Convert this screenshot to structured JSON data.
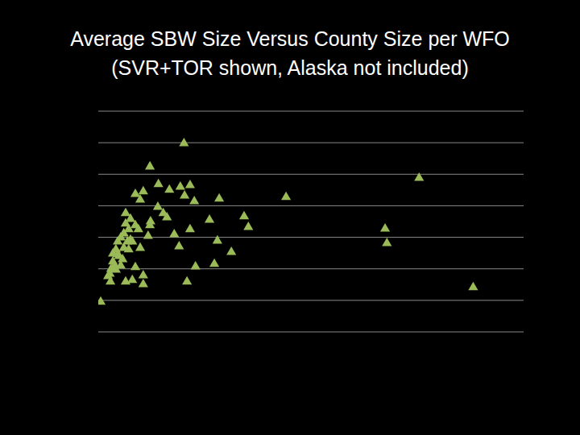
{
  "chart_data": {
    "type": "scatter",
    "title": "Average SBW Size Versus County Size per WFO\n(SVR+TOR shown, Alaska not included)",
    "x": [
      0.04,
      1.41,
      0.85,
      5.28,
      3.09,
      6.17,
      4.72,
      4.75,
      1.51,
      1.35,
      0.99,
      1.17,
      0.61,
      0.74,
      0.69,
      1.42,
      1.58,
      1.99,
      0.98,
      1.07,
      1.13,
      0.86,
      1.83,
      2.4,
      2.47,
      1.51,
      1.25,
      1.96,
      1.33,
      2.19,
      1.6,
      1.91,
      1.46,
      0.74,
      0.74,
      0.56,
      0.45,
      0.61,
      0.82,
      0.85,
      0.69,
      0.66,
      0.53,
      0.61,
      0.5,
      0.45,
      0.42,
      0.48,
      0.37,
      0.32,
      0.29,
      0.34,
      0.24,
      0.21,
      0.19,
      0.16,
      0.2,
      0.27,
      0.4,
      0.42,
      0.5,
      0.32,
      0.37,
      0.53,
      0.45,
      0.56,
      0.24,
      0.29
    ],
    "values": [
      0.95,
      5.98,
      5.24,
      4.88,
      4.27,
      1.41,
      3.27,
      2.81,
      4.65,
      4.6,
      4.68,
      4.5,
      4.37,
      4.45,
      4.19,
      4.32,
      4.14,
      4.22,
      3.96,
      3.76,
      3.63,
      3.5,
      3.55,
      3.66,
      3.32,
      3.25,
      3.09,
      2.89,
      2.71,
      2.53,
      2.07,
      2.15,
      1.59,
      1.79,
      1.51,
      1.64,
      1.59,
      2.05,
      3.04,
      3.38,
      2.66,
      3.25,
      3.58,
      3.38,
      3.25,
      3.43,
      3.12,
      2.86,
      2.99,
      2.86,
      2.61,
      2.4,
      2.23,
      1.99,
      1.84,
      1.76,
      1.59,
      2.1,
      2.3,
      2.66,
      2.61,
      2.46,
      2.1,
      2.92,
      3.76,
      2.86,
      2.48,
      1.97
    ],
    "color": "#9bbb59",
    "marker": "triangle",
    "xlim": [
      0,
      7
    ],
    "xticks": [
      0,
      1,
      2,
      3,
      4,
      5,
      6,
      7
    ],
    "ylim": [
      0,
      7
    ],
    "yticks": [
      0,
      1,
      2,
      3,
      4,
      5,
      6,
      7
    ],
    "grid": true,
    "tick_labels": false
  }
}
